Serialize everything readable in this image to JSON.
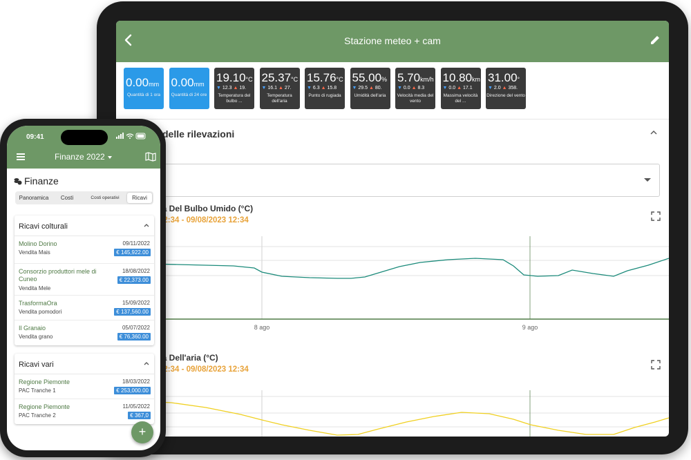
{
  "tablet": {
    "header": {
      "title": "Stazione meteo + cam",
      "back_icon": "back-arrow-icon",
      "edit_icon": "pencil-icon"
    },
    "tiles": [
      {
        "value": "0.00",
        "unit": "mm",
        "min": "",
        "max": "",
        "label": "Quantità di 1 ora",
        "color": "#2b9ae8"
      },
      {
        "value": "0.00",
        "unit": "mm",
        "min": "",
        "max": "",
        "label": "Quantità di 24 ore",
        "color": "#2b9ae8"
      },
      {
        "value": "19.10",
        "unit": "°C",
        "min": "12.3",
        "max": "19.",
        "label": "Temperatura del bulbo ...",
        "color": "#3a3a3a"
      },
      {
        "value": "25.37",
        "unit": "°C",
        "min": "16.1",
        "max": "27.",
        "label": "Temperatura dell'aria",
        "color": "#3a3a3a"
      },
      {
        "value": "15.76",
        "unit": "°C",
        "min": "6.3",
        "max": "15.8",
        "label": "Punto di rugiada",
        "color": "#3a3a3a"
      },
      {
        "value": "55.00",
        "unit": "%",
        "min": "29.5",
        "max": "80.",
        "label": "Umidità dell'aria",
        "color": "#3a3a3a"
      },
      {
        "value": "5.70",
        "unit": "km/h",
        "min": "0.0",
        "max": "8.3",
        "label": "Velocità media del vento",
        "color": "#3a3a3a"
      },
      {
        "value": "10.80",
        "unit": "km",
        "min": "0.0",
        "max": "17.1",
        "label": "Massima velocità del ...",
        "color": "#3a3a3a"
      },
      {
        "value": "31.00",
        "unit": "°",
        "min": "2.0",
        "max": "358.",
        "label": "Direzione del vento",
        "color": "#3a3a3a"
      }
    ],
    "section": {
      "title": "delle rilevazioni"
    },
    "charts": [
      {
        "title": "ra Del Bulbo Umido (°C)",
        "range": "12:34 - 09/08/2023 12:34",
        "color": "#1a8a7a",
        "x_ticks": [
          "8 ago",
          "9 ago"
        ]
      },
      {
        "title": "ra Dell'aria (°C)",
        "range": "12:34 - 09/08/2023 12:34",
        "color": "#f0d020",
        "x_ticks": []
      }
    ]
  },
  "phone": {
    "status": {
      "time": "09:41"
    },
    "header": {
      "title": "Finanze 2022",
      "menu_icon": "hamburger-icon",
      "map_icon": "map-icon"
    },
    "page_title": "Finanze",
    "tabs": [
      "Panoramica",
      "Costi",
      "Costi operativi",
      "Ricavi"
    ],
    "active_tab": "Ricavi",
    "sections": [
      {
        "title": "Ricavi colturali",
        "items": [
          {
            "name": "Molino Dorino",
            "date": "09/11/2022",
            "desc": "Vendita Mais",
            "amount": "€ 145,922.00"
          },
          {
            "name": "Consorzio produttori mele di Cuneo",
            "date": "18/08/2022",
            "desc": "Vendita Mele",
            "amount": "€ 22,373.00"
          },
          {
            "name": "TrasformaOra",
            "date": "15/09/2022",
            "desc": "Vendita pomodori",
            "amount": "€ 137,560.00"
          },
          {
            "name": "Il Granaio",
            "date": "05/07/2022",
            "desc": "Vendita grano",
            "amount": "€ 76,360.00"
          }
        ]
      },
      {
        "title": "Ricavi vari",
        "items": [
          {
            "name": "Regione Piemonte",
            "date": "18/03/2022",
            "desc": "PAC Tranche 1",
            "amount": "€ 253,000.00"
          },
          {
            "name": "Regione Piemonte",
            "date": "11/05/2022",
            "desc": "PAC Tranche 2",
            "amount": "€ 367,0"
          }
        ]
      }
    ],
    "fab_label": "+"
  }
}
